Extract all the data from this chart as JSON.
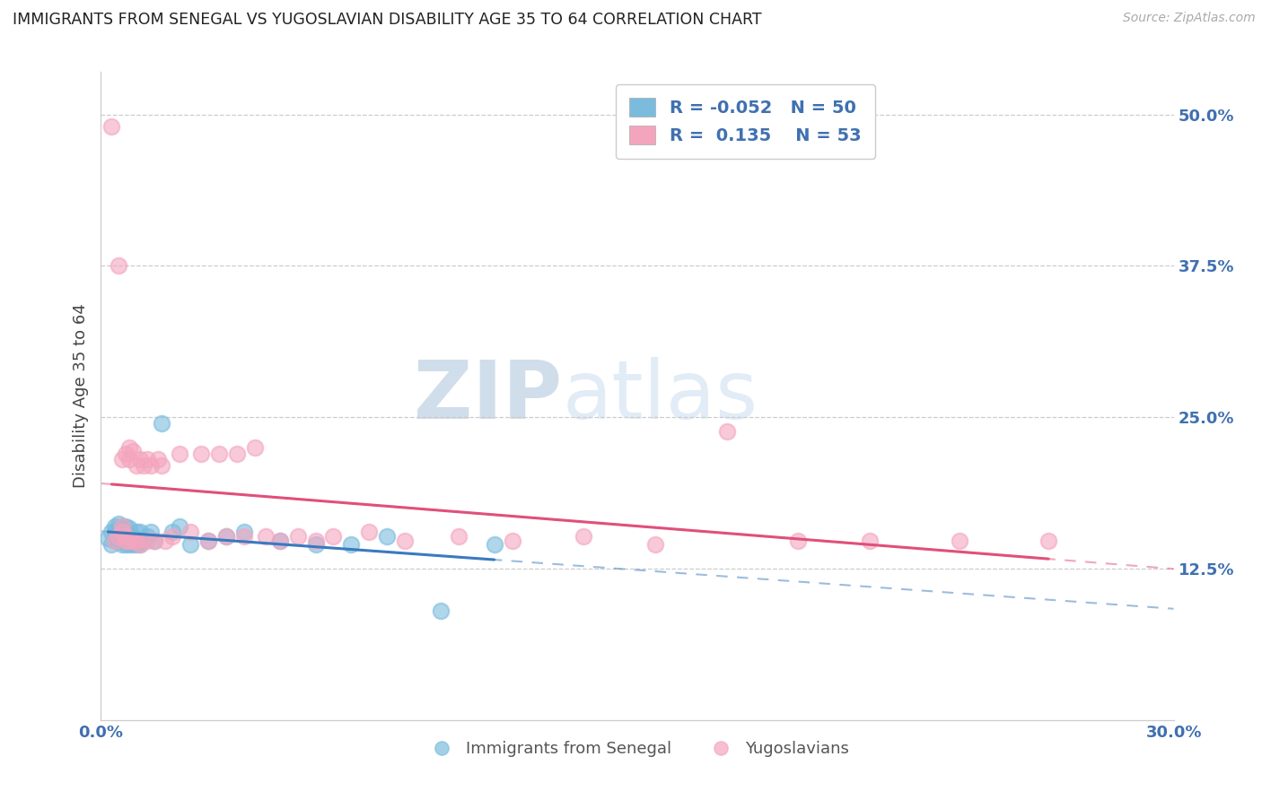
{
  "title": "IMMIGRANTS FROM SENEGAL VS YUGOSLAVIAN DISABILITY AGE 35 TO 64 CORRELATION CHART",
  "source": "Source: ZipAtlas.com",
  "ylabel": "Disability Age 35 to 64",
  "xlim": [
    0.0,
    0.3
  ],
  "ylim": [
    0.0,
    0.535
  ],
  "ytick_vals": [
    0.0,
    0.125,
    0.25,
    0.375,
    0.5
  ],
  "ytick_labels": [
    "",
    "12.5%",
    "25.0%",
    "37.5%",
    "50.0%"
  ],
  "xtick_vals": [
    0.0,
    0.3
  ],
  "xtick_labels": [
    "0.0%",
    "30.0%"
  ],
  "legend_r1": "-0.052",
  "legend_n1": "50",
  "legend_r2": "0.135",
  "legend_n2": "53",
  "blue_color": "#7bbcde",
  "pink_color": "#f4a5be",
  "blue_line_color": "#3a7abf",
  "pink_line_color": "#e0507a",
  "watermark_color": "#cde0f0",
  "title_color": "#222222",
  "label_color": "#4070b0",
  "blue_scatter_x": [
    0.002,
    0.003,
    0.003,
    0.004,
    0.004,
    0.004,
    0.005,
    0.005,
    0.005,
    0.005,
    0.005,
    0.006,
    0.006,
    0.006,
    0.006,
    0.006,
    0.007,
    0.007,
    0.007,
    0.007,
    0.007,
    0.008,
    0.008,
    0.008,
    0.008,
    0.009,
    0.009,
    0.009,
    0.01,
    0.01,
    0.01,
    0.011,
    0.011,
    0.012,
    0.013,
    0.014,
    0.015,
    0.017,
    0.02,
    0.022,
    0.025,
    0.03,
    0.035,
    0.04,
    0.05,
    0.06,
    0.07,
    0.08,
    0.095,
    0.11
  ],
  "blue_scatter_y": [
    0.15,
    0.145,
    0.155,
    0.148,
    0.155,
    0.16,
    0.148,
    0.152,
    0.155,
    0.158,
    0.162,
    0.145,
    0.148,
    0.152,
    0.155,
    0.16,
    0.145,
    0.148,
    0.152,
    0.155,
    0.16,
    0.145,
    0.148,
    0.152,
    0.158,
    0.145,
    0.148,
    0.152,
    0.145,
    0.148,
    0.155,
    0.145,
    0.155,
    0.148,
    0.152,
    0.155,
    0.148,
    0.245,
    0.155,
    0.16,
    0.145,
    0.148,
    0.152,
    0.155,
    0.148,
    0.145,
    0.145,
    0.152,
    0.09,
    0.145
  ],
  "pink_scatter_x": [
    0.003,
    0.004,
    0.005,
    0.005,
    0.006,
    0.006,
    0.006,
    0.007,
    0.007,
    0.007,
    0.008,
    0.008,
    0.008,
    0.009,
    0.009,
    0.01,
    0.01,
    0.011,
    0.011,
    0.012,
    0.013,
    0.013,
    0.014,
    0.015,
    0.016,
    0.017,
    0.018,
    0.02,
    0.022,
    0.025,
    0.028,
    0.03,
    0.033,
    0.035,
    0.038,
    0.04,
    0.043,
    0.046,
    0.05,
    0.055,
    0.06,
    0.065,
    0.075,
    0.085,
    0.1,
    0.115,
    0.135,
    0.155,
    0.175,
    0.195,
    0.215,
    0.24,
    0.265
  ],
  "pink_scatter_y": [
    0.49,
    0.148,
    0.375,
    0.152,
    0.155,
    0.16,
    0.215,
    0.148,
    0.152,
    0.22,
    0.148,
    0.215,
    0.225,
    0.148,
    0.222,
    0.148,
    0.21,
    0.145,
    0.215,
    0.21,
    0.148,
    0.215,
    0.21,
    0.148,
    0.215,
    0.21,
    0.148,
    0.152,
    0.22,
    0.155,
    0.22,
    0.148,
    0.22,
    0.152,
    0.22,
    0.152,
    0.225,
    0.152,
    0.148,
    0.152,
    0.148,
    0.152,
    0.155,
    0.148,
    0.152,
    0.148,
    0.152,
    0.145,
    0.238,
    0.148,
    0.148,
    0.148,
    0.148
  ]
}
